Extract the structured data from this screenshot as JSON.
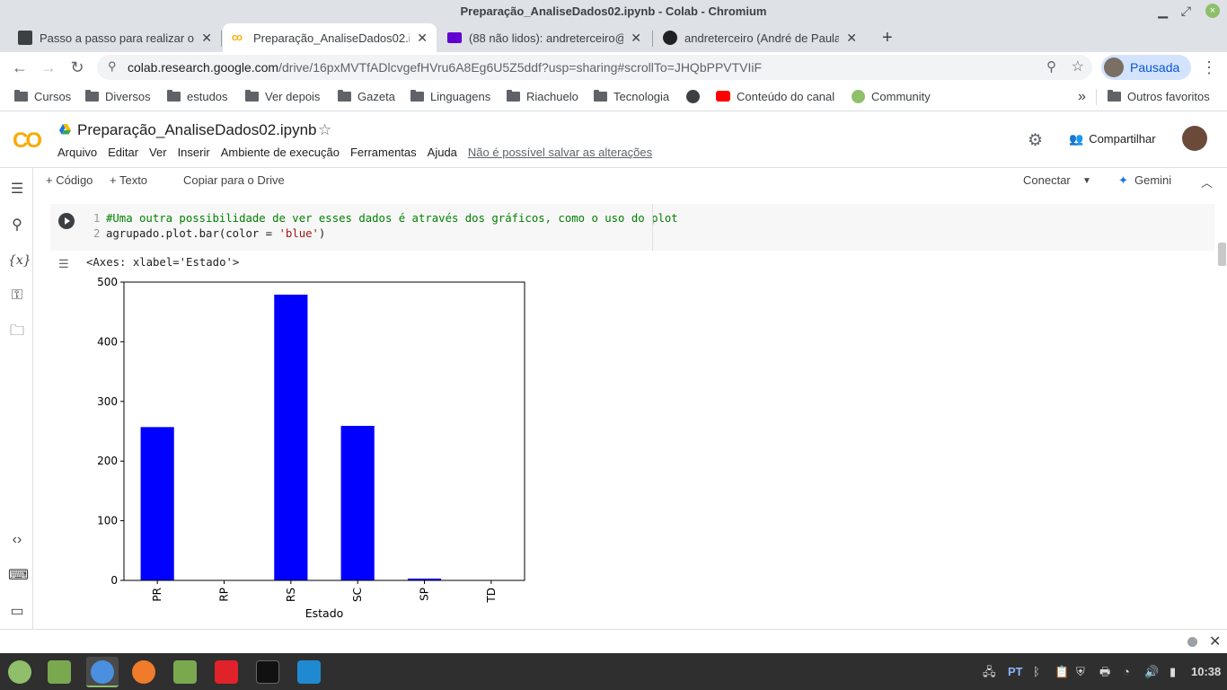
{
  "window": {
    "title": "Preparação_AnaliseDados02.ipynb - Colab - Chromium",
    "minimize": "▁",
    "maximize": "⤢",
    "close": "×"
  },
  "tabs": [
    {
      "title": "Passo a passo para realizar o",
      "icon": "document-icon",
      "color": "#3c4043"
    },
    {
      "title": "Preparação_AnaliseDados02.i",
      "icon": "colab-icon",
      "color": "#f9ab00"
    },
    {
      "title": "(88 não lidos): andreterceiro@",
      "icon": "mail-icon",
      "color": "#6001d2"
    },
    {
      "title": "andreterceiro (André de Paula",
      "icon": "github-icon",
      "color": "#202124"
    }
  ],
  "tab_close": "✕",
  "new_tab": "+",
  "nav": {
    "url_domain": "colab.research.google.com",
    "url_path": "/drive/16pxMVTfADlcvgefHVru6A8Eg6U5Z5ddf?usp=sharing#scrollTo=JHQbPPVTVIiF",
    "profile_label": "Pausada"
  },
  "bookmarks": [
    {
      "label": "Cursos",
      "icon": "folder-icon"
    },
    {
      "label": "Diversos",
      "icon": "folder-icon"
    },
    {
      "label": "estudos",
      "icon": "folder-icon"
    },
    {
      "label": "Ver depois",
      "icon": "folder-icon"
    },
    {
      "label": "Gazeta",
      "icon": "folder-icon"
    },
    {
      "label": "Linguagens",
      "icon": "folder-icon"
    },
    {
      "label": "Riachuelo",
      "icon": "folder-icon"
    },
    {
      "label": "Tecnologia",
      "icon": "folder-icon"
    },
    {
      "label": "",
      "icon": "globe-icon"
    },
    {
      "label": "Conteúdo do canal",
      "icon": "youtube-icon"
    },
    {
      "label": "Community",
      "icon": "community-icon"
    }
  ],
  "bookmarks_more": "»",
  "other_bookmarks": "Outros favoritos",
  "colab": {
    "logo": "CO",
    "notebook_title": "Preparação_AnaliseDados02.ipynb",
    "menu": [
      "Arquivo",
      "Editar",
      "Ver",
      "Inserir",
      "Ambiente de execução",
      "Ferramentas",
      "Ajuda"
    ],
    "save_warning": "Não é possível salvar as alterações",
    "share_label": "Compartilhar"
  },
  "cell_toolbar": {
    "add_code": "+ Código",
    "add_text": "+ Texto",
    "copy_drive": "Copiar para o Drive",
    "connect": "Conectar",
    "gemini": "Gemini"
  },
  "code": {
    "line1_num": "1",
    "line1": "#Uma outra possibilidade de ver esses dados é através dos gráficos, como o uso do plot",
    "line2_num": "2",
    "line2_pre": "agrupado.plot.bar(color = ",
    "line2_str": "'blue'",
    "line2_post": ")"
  },
  "output": {
    "text": "<Axes: xlabel='Estado'>"
  },
  "chart_data": {
    "type": "bar",
    "categories": [
      "PR",
      "RP",
      "RS",
      "SC",
      "SP",
      "TD"
    ],
    "values": [
      257,
      0,
      479,
      259,
      3,
      0
    ],
    "xlabel": "Estado",
    "ylabel": "",
    "ylim": [
      0,
      500
    ],
    "yticks": [
      0,
      100,
      200,
      300,
      400,
      500
    ],
    "bar_color": "#0000ff",
    "grid": false
  },
  "taskbar": {
    "apps": [
      {
        "name": "mint-menu",
        "color": "#8fbf6a"
      },
      {
        "name": "files",
        "color": "#7aa84f"
      },
      {
        "name": "chromium",
        "color": "#4a8fe0"
      },
      {
        "name": "firefox",
        "color": "#f07b2a"
      },
      {
        "name": "files-2",
        "color": "#7aa84f"
      },
      {
        "name": "opera",
        "color": "#e0232a"
      },
      {
        "name": "terminal",
        "color": "#111111"
      },
      {
        "name": "vscode",
        "color": "#1f8ad2"
      }
    ],
    "lang": "PT",
    "clock": "10:38"
  }
}
